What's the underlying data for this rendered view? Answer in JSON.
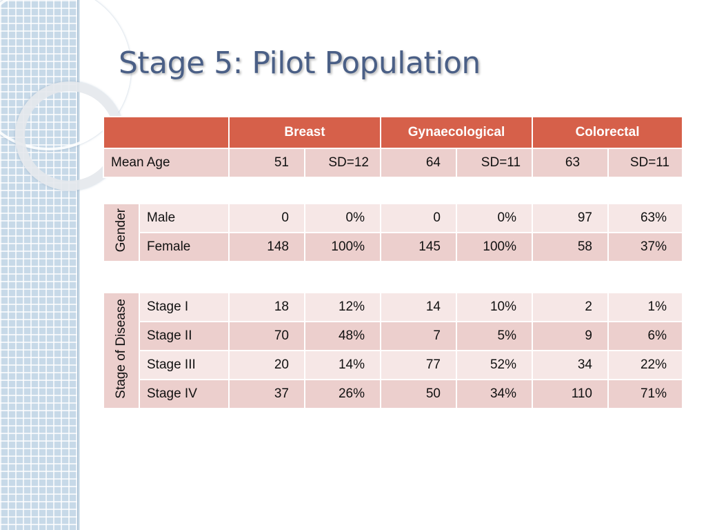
{
  "title": "Stage 5: Pilot Population",
  "header": {
    "corner": "",
    "breast": "Breast",
    "gynae": "Gynaecological",
    "colorectal": "Colorectal"
  },
  "mean_age": {
    "label": "Mean Age",
    "values": [
      "51",
      "SD=12",
      "64",
      "SD=11",
      "63",
      "SD=11"
    ]
  },
  "gender": {
    "group_label": "Gender",
    "rows": [
      {
        "label": "Male",
        "values": [
          "0",
          "0%",
          "0",
          "0%",
          "97",
          "63%"
        ]
      },
      {
        "label": "Female",
        "values": [
          "148",
          "100%",
          "145",
          "100%",
          "58",
          "37%"
        ]
      }
    ]
  },
  "stage": {
    "group_label": "Stage of Disease",
    "rows": [
      {
        "label": "Stage I",
        "values": [
          "18",
          "12%",
          "14",
          "10%",
          "2",
          "1%"
        ]
      },
      {
        "label": "Stage II",
        "values": [
          "70",
          "48%",
          "7",
          "5%",
          "9",
          "6%"
        ]
      },
      {
        "label": "Stage III",
        "values": [
          "20",
          "14%",
          "77",
          "52%",
          "34",
          "22%"
        ]
      },
      {
        "label": "Stage IV",
        "values": [
          "37",
          "26%",
          "50",
          "34%",
          "110",
          "71%"
        ]
      }
    ]
  },
  "colors": {
    "header": "#d6604a",
    "row_dark": "#eccfcd",
    "row_light": "#f6e7e6",
    "title": "#4a5f86"
  }
}
